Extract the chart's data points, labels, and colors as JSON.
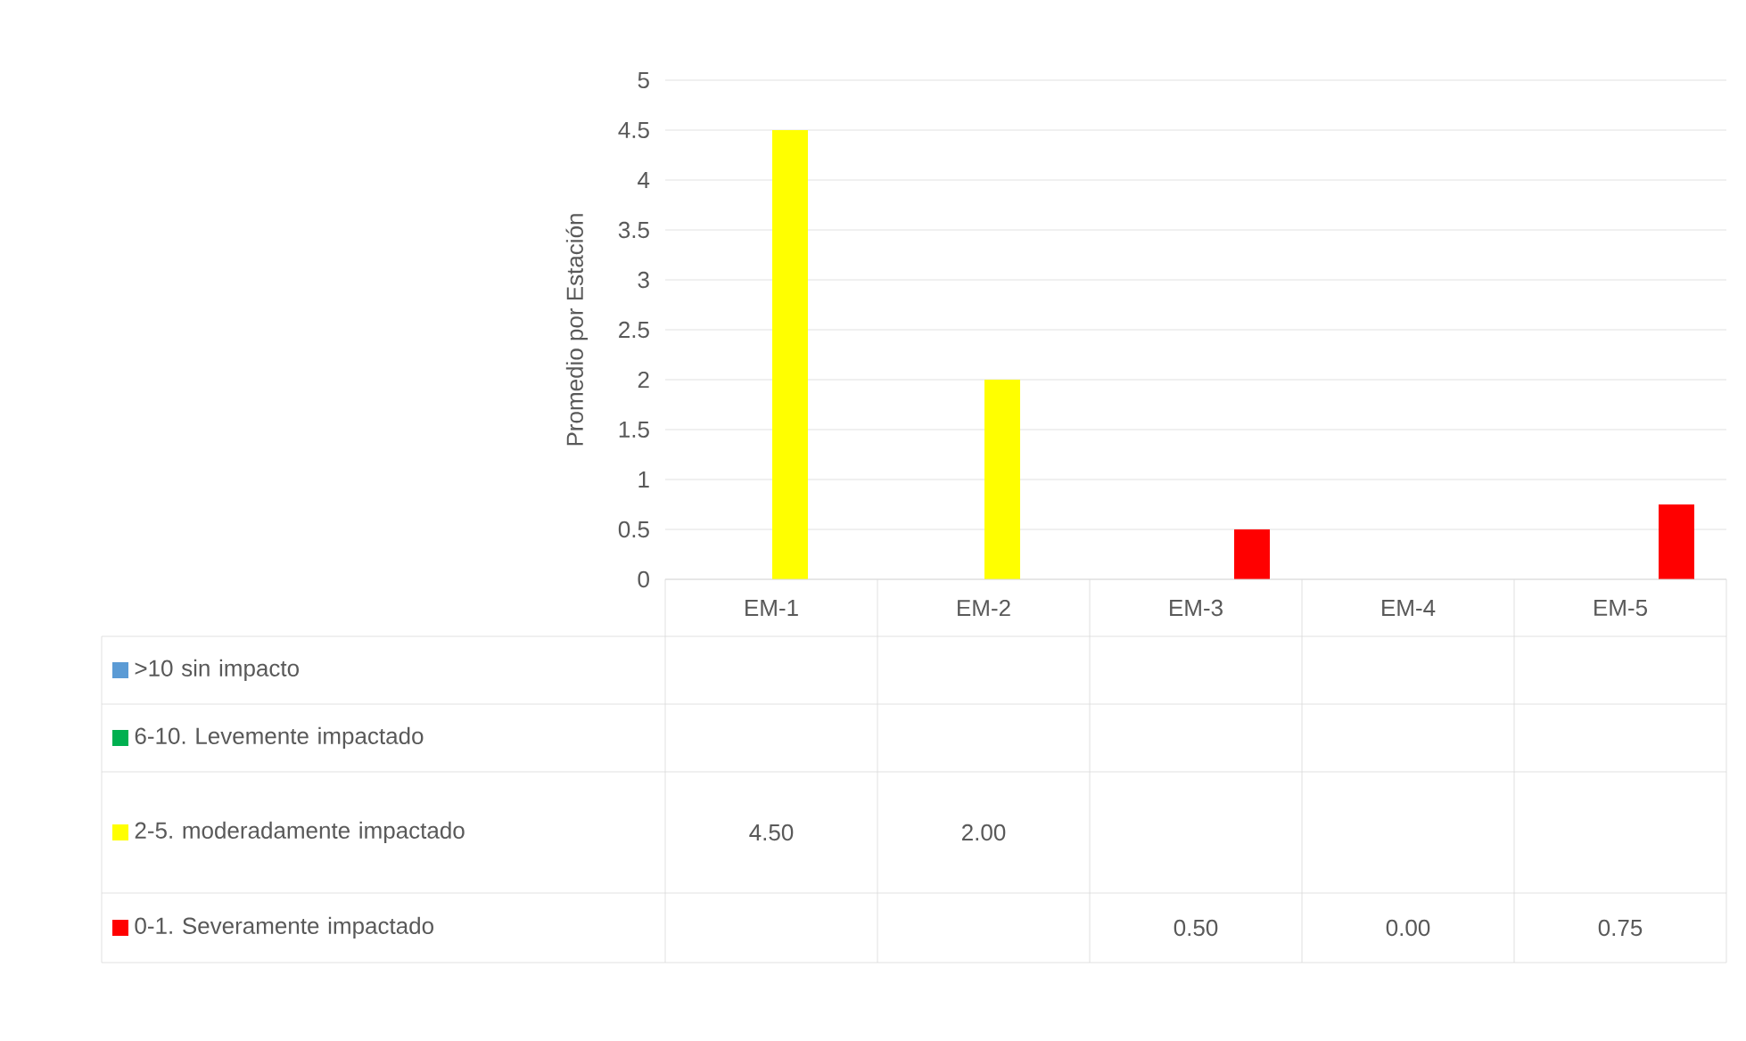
{
  "chart_data": {
    "type": "bar",
    "ylabel": "Promedio por Estación",
    "categories": [
      "EM-1",
      "EM-2",
      "EM-3",
      "EM-4",
      "EM-5"
    ],
    "ylim": [
      0,
      5
    ],
    "yticks": [
      0,
      0.5,
      1,
      1.5,
      2,
      2.5,
      3,
      3.5,
      4,
      4.5,
      5
    ],
    "grid": "y",
    "legend": "bottom left",
    "series": [
      {
        "name": ">10 sin impacto",
        "color": "#5b9bd5",
        "values": [
          null,
          null,
          null,
          null,
          null
        ],
        "value_labels": [
          null,
          null,
          null,
          null,
          null
        ]
      },
      {
        "name": "6-10. Levemente impactado",
        "color": "#00b050",
        "values": [
          null,
          null,
          null,
          null,
          null
        ],
        "value_labels": [
          null,
          null,
          null,
          null,
          null
        ]
      },
      {
        "name": "2-5. moderadamente impactado",
        "color": "#ffff00",
        "values": [
          4.5,
          2,
          null,
          null,
          null
        ],
        "value_labels": [
          "4.50",
          "2.00",
          null,
          null,
          null
        ]
      },
      {
        "name": "0-1. Severamente impactado",
        "color": "#ff0000",
        "values": [
          null,
          null,
          0.5,
          0,
          0.75
        ],
        "value_labels": [
          null,
          null,
          "0.50",
          "0.00",
          "0.75"
        ]
      }
    ]
  }
}
